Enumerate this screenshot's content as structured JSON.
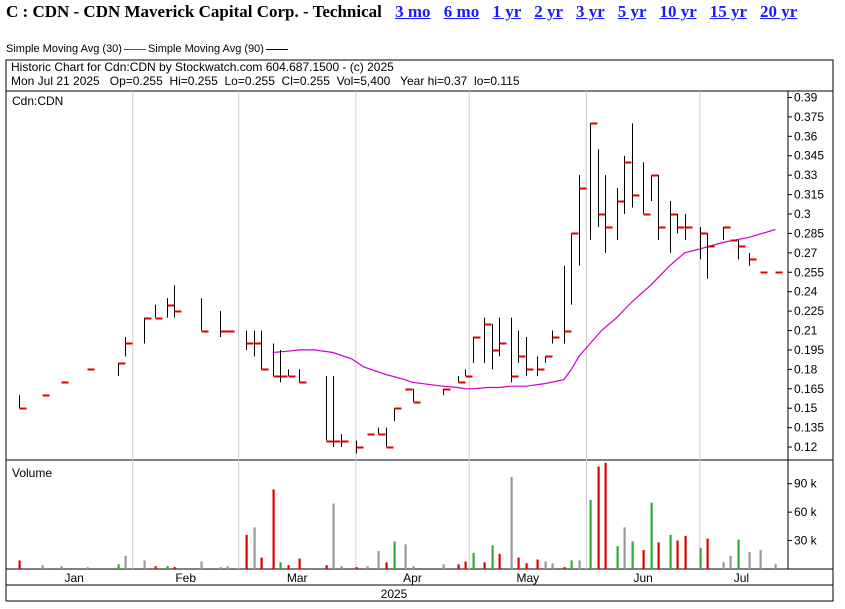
{
  "header": {
    "title": "C : CDN - CDN Maverick Capital Corp. - Technical",
    "ranges": [
      "3 mo",
      "6 mo",
      "1 yr",
      "2 yr",
      "3 yr",
      "5 yr",
      "10 yr",
      "15 yr",
      "20 yr"
    ]
  },
  "legend": {
    "ma30": "Simple Moving Avg (30)",
    "ma90": "Simple Moving Avg (90)"
  },
  "info": {
    "line1": "Historic Chart for Cdn:CDN by Stockwatch.com 604.687.1500 - (c) 2025",
    "line2": "Mon Jul 21 2025   Op=0.255  Hi=0.255  Lo=0.255  Cl=0.255  Vol=5,400   Year hi=0.37  lo=0.115"
  },
  "colors": {
    "up": "#000000",
    "down": "#dd0000",
    "ma30": "#cc00cc",
    "ma90": "#000000",
    "vol_up": "#33aa33",
    "vol_down": "#dd0000",
    "vol_flat": "#999999",
    "grid": "#cccccc",
    "link": "#1a1aff"
  },
  "chart_data": {
    "type": "ohlc",
    "symbol_label": "Cdn:CDN",
    "volume_label": "Volume",
    "year_label": "2025",
    "months": [
      "Jan",
      "Feb",
      "Mar",
      "Apr",
      "May",
      "Jun",
      "Jul"
    ],
    "ylim": [
      0.11,
      0.395
    ],
    "yticks": [
      0.12,
      0.135,
      0.15,
      0.165,
      0.18,
      0.195,
      0.21,
      0.225,
      0.24,
      0.255,
      0.27,
      0.285,
      0.3,
      0.315,
      0.33,
      0.345,
      0.36,
      0.375,
      0.39
    ],
    "vol_ticks": [
      "30 k",
      "60 k",
      "90 k"
    ],
    "vol_tick_values": [
      30000,
      60000,
      90000
    ],
    "vol_max": 115000,
    "dates": [
      "2025-01-02",
      "2025-01-08",
      "2025-01-13",
      "2025-01-20",
      "2025-01-28",
      "2025-01-30",
      "2025-02-04",
      "2025-02-07",
      "2025-02-10",
      "2025-02-12",
      "2025-02-19",
      "2025-02-24",
      "2025-02-26",
      "2025-03-03",
      "2025-03-05",
      "2025-03-07",
      "2025-03-10",
      "2025-03-12",
      "2025-03-14",
      "2025-03-17",
      "2025-03-24",
      "2025-03-26",
      "2025-03-28",
      "2025-04-01",
      "2025-04-04",
      "2025-04-07",
      "2025-04-09",
      "2025-04-11",
      "2025-04-14",
      "2025-04-16",
      "2025-04-24",
      "2025-04-28",
      "2025-04-30",
      "2025-05-02",
      "2025-05-05",
      "2025-05-07",
      "2025-05-09",
      "2025-05-12",
      "2025-05-14",
      "2025-05-16",
      "2025-05-19",
      "2025-05-21",
      "2025-05-23",
      "2025-05-26",
      "2025-05-28",
      "2025-05-30",
      "2025-06-02",
      "2025-06-04",
      "2025-06-06",
      "2025-06-09",
      "2025-06-11",
      "2025-06-13",
      "2025-06-16",
      "2025-06-18",
      "2025-06-20",
      "2025-06-23",
      "2025-06-25",
      "2025-06-27",
      "2025-07-01",
      "2025-07-03",
      "2025-07-07",
      "2025-07-09",
      "2025-07-11",
      "2025-07-14",
      "2025-07-17",
      "2025-07-21"
    ],
    "open": [
      0.16,
      0.16,
      0.17,
      0.18,
      0.18,
      0.2,
      0.22,
      0.23,
      0.22,
      0.23,
      0.21,
      0.21,
      0.21,
      0.21,
      0.2,
      0.19,
      0.19,
      0.17,
      0.18,
      0.175,
      0.175,
      0.125,
      0.125,
      0.125,
      0.13,
      0.13,
      0.13,
      0.145,
      0.165,
      0.155,
      0.165,
      0.175,
      0.18,
      0.195,
      0.22,
      0.19,
      0.22,
      0.175,
      0.21,
      0.185,
      0.185,
      0.19,
      0.205,
      0.26,
      0.28,
      0.32,
      0.36,
      0.34,
      0.3,
      0.29,
      0.34,
      0.31,
      0.33,
      0.32,
      0.3,
      0.285,
      0.3,
      0.3,
      0.28,
      0.28,
      0.29,
      0.28,
      0.27,
      0.265,
      0.255,
      0.255
    ],
    "high": [
      0.16,
      0.16,
      0.17,
      0.18,
      0.185,
      0.205,
      0.22,
      0.23,
      0.235,
      0.245,
      0.235,
      0.225,
      0.21,
      0.21,
      0.21,
      0.21,
      0.2,
      0.195,
      0.18,
      0.18,
      0.175,
      0.175,
      0.13,
      0.125,
      0.13,
      0.135,
      0.135,
      0.15,
      0.165,
      0.165,
      0.165,
      0.175,
      0.18,
      0.205,
      0.22,
      0.215,
      0.22,
      0.22,
      0.21,
      0.205,
      0.19,
      0.19,
      0.21,
      0.26,
      0.285,
      0.33,
      0.37,
      0.35,
      0.33,
      0.32,
      0.345,
      0.37,
      0.34,
      0.33,
      0.33,
      0.31,
      0.3,
      0.3,
      0.29,
      0.285,
      0.29,
      0.28,
      0.28,
      0.27,
      0.255,
      0.255
    ],
    "low": [
      0.15,
      0.16,
      0.17,
      0.18,
      0.175,
      0.19,
      0.2,
      0.22,
      0.22,
      0.22,
      0.21,
      0.205,
      0.21,
      0.195,
      0.19,
      0.18,
      0.175,
      0.17,
      0.175,
      0.17,
      0.125,
      0.12,
      0.12,
      0.115,
      0.13,
      0.13,
      0.12,
      0.14,
      0.165,
      0.155,
      0.16,
      0.17,
      0.175,
      0.185,
      0.185,
      0.18,
      0.19,
      0.17,
      0.185,
      0.175,
      0.175,
      0.185,
      0.2,
      0.2,
      0.23,
      0.26,
      0.28,
      0.29,
      0.27,
      0.28,
      0.3,
      0.305,
      0.3,
      0.31,
      0.28,
      0.27,
      0.285,
      0.28,
      0.265,
      0.25,
      0.28,
      0.28,
      0.265,
      0.26,
      0.255,
      0.255
    ],
    "close": [
      0.15,
      0.16,
      0.17,
      0.18,
      0.185,
      0.2,
      0.22,
      0.22,
      0.23,
      0.225,
      0.21,
      0.21,
      0.21,
      0.2,
      0.2,
      0.18,
      0.175,
      0.175,
      0.175,
      0.17,
      0.125,
      0.125,
      0.125,
      0.12,
      0.13,
      0.13,
      0.12,
      0.15,
      0.165,
      0.155,
      0.165,
      0.17,
      0.175,
      0.205,
      0.215,
      0.195,
      0.2,
      0.175,
      0.19,
      0.18,
      0.18,
      0.19,
      0.205,
      0.21,
      0.285,
      0.32,
      0.37,
      0.3,
      0.29,
      0.31,
      0.34,
      0.315,
      0.3,
      0.33,
      0.29,
      0.3,
      0.29,
      0.29,
      0.285,
      0.275,
      0.29,
      0.28,
      0.275,
      0.265,
      0.255,
      0.255
    ],
    "volume": [
      9000,
      4000,
      3000,
      2000,
      5000,
      14000,
      9000,
      3000,
      3000,
      2000,
      8000,
      2000,
      3000,
      36000,
      44000,
      12000,
      84000,
      7000,
      4000,
      11000,
      4000,
      69000,
      3000,
      2000,
      3000,
      19000,
      7000,
      29000,
      26000,
      3000,
      5000,
      5000,
      8000,
      17000,
      7000,
      25000,
      16000,
      97000,
      12000,
      6000,
      10000,
      8000,
      6000,
      2000,
      9000,
      9000,
      73000,
      108000,
      112000,
      24000,
      44000,
      29000,
      20000,
      70000,
      28000,
      36000,
      30000,
      35000,
      22000,
      32000,
      7000,
      14000,
      31000,
      18000,
      20000,
      5400
    ],
    "ma30": {
      "dates": [
        "2025-03-10",
        "2025-03-14",
        "2025-03-17",
        "2025-03-21",
        "2025-03-26",
        "2025-03-31",
        "2025-04-03",
        "2025-04-07",
        "2025-04-09",
        "2025-04-14",
        "2025-04-16",
        "2025-04-24",
        "2025-04-28",
        "2025-04-30",
        "2025-05-02",
        "2025-05-06",
        "2025-05-09",
        "2025-05-12",
        "2025-05-16",
        "2025-05-21",
        "2025-05-26",
        "2025-05-28",
        "2025-05-30",
        "2025-06-02",
        "2025-06-05",
        "2025-06-09",
        "2025-06-13",
        "2025-06-18",
        "2025-06-23",
        "2025-06-27",
        "2025-07-01",
        "2025-07-07",
        "2025-07-14",
        "2025-07-21"
      ],
      "values": [
        0.193,
        0.194,
        0.195,
        0.195,
        0.193,
        0.188,
        0.182,
        0.178,
        0.176,
        0.172,
        0.17,
        0.167,
        0.166,
        0.165,
        0.165,
        0.166,
        0.166,
        0.167,
        0.167,
        0.169,
        0.172,
        0.18,
        0.19,
        0.2,
        0.21,
        0.22,
        0.232,
        0.245,
        0.26,
        0.27,
        0.273,
        0.278,
        0.282,
        0.288
      ]
    },
    "ma90_values": []
  }
}
